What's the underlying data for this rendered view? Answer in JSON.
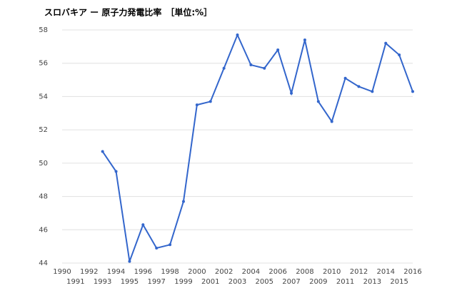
{
  "chart_data": {
    "type": "line",
    "title": "スロバキア ー 原子力発電比率　［単位:%］",
    "x": [
      1990,
      1991,
      1992,
      1993,
      1994,
      1995,
      1996,
      1997,
      1998,
      1999,
      2000,
      2001,
      2002,
      2003,
      2004,
      2005,
      2006,
      2007,
      2008,
      2009,
      2010,
      2011,
      2012,
      2013,
      2014,
      2015,
      2016
    ],
    "series": [
      {
        "name": "スロバキア",
        "color": "#3366cc",
        "values": [
          null,
          null,
          null,
          50.7,
          49.5,
          44.1,
          46.3,
          44.9,
          45.1,
          47.7,
          53.5,
          53.7,
          55.7,
          57.7,
          55.9,
          55.7,
          56.8,
          54.2,
          57.4,
          53.7,
          52.5,
          55.1,
          54.6,
          54.3,
          57.2,
          56.5,
          54.3
        ]
      }
    ],
    "xlim": [
      1990,
      2016
    ],
    "xticks": [
      1990,
      1991,
      1992,
      1993,
      1994,
      1995,
      1996,
      1997,
      1998,
      1999,
      2000,
      2001,
      2002,
      2003,
      2004,
      2005,
      2006,
      2007,
      2008,
      2009,
      2010,
      2011,
      2012,
      2013,
      2014,
      2015,
      2016
    ],
    "ylim": [
      44,
      58
    ],
    "yticks": [
      44,
      46,
      48,
      50,
      52,
      54,
      56,
      58
    ],
    "grid": true
  }
}
